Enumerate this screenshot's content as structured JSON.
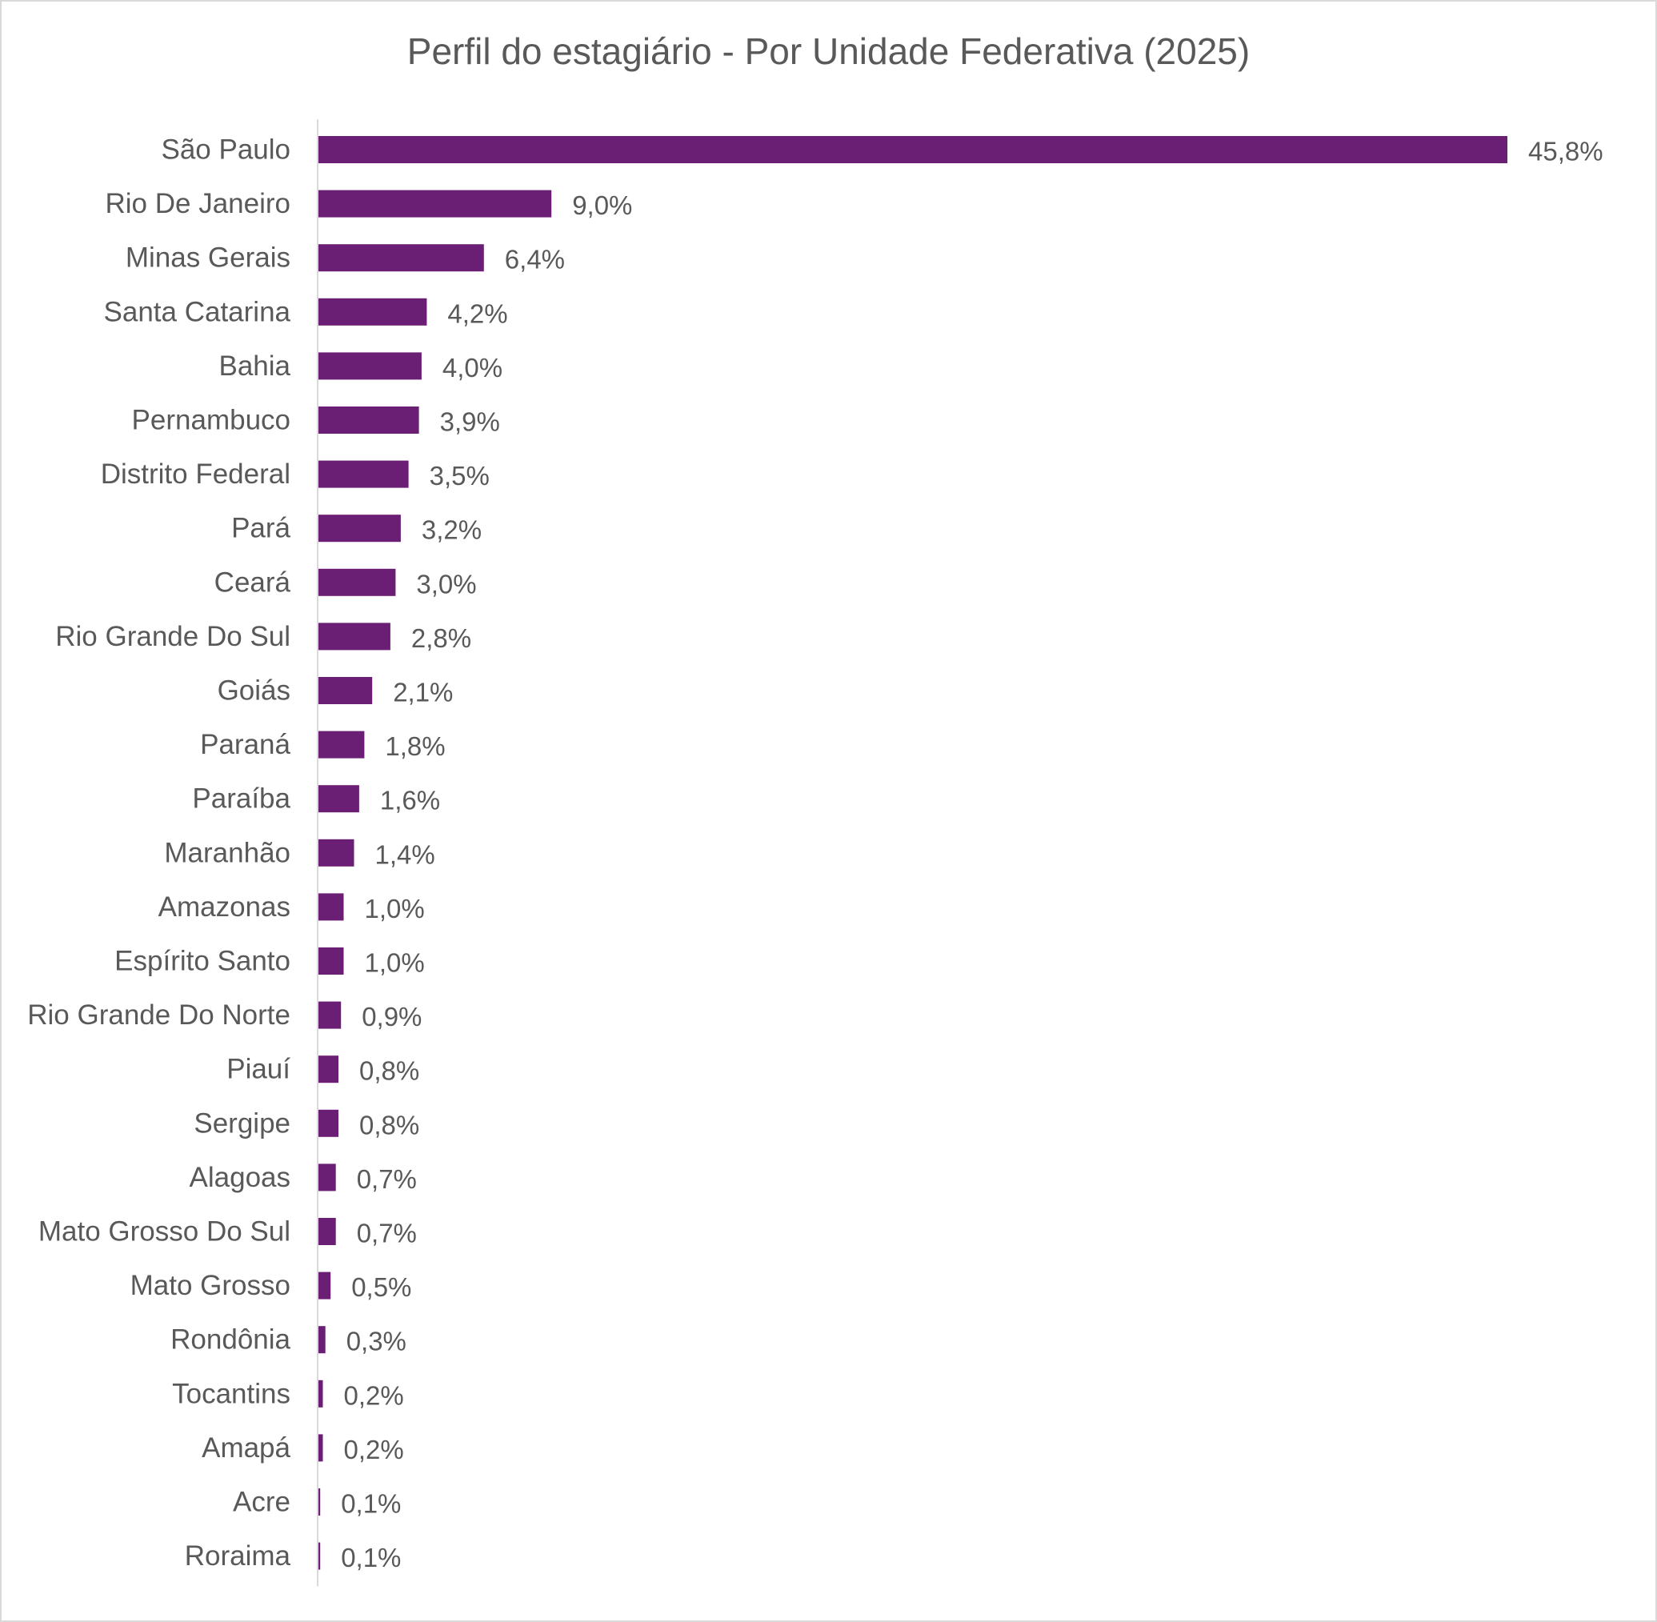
{
  "chart_data": {
    "type": "bar",
    "orientation": "horizontal",
    "title": "Perfil do estagiário - Por Unidade Federativa (2025)",
    "xlabel": "",
    "ylabel": "",
    "unit": "%",
    "grid": false,
    "legend": "none",
    "xlim": [
      0,
      45.8
    ],
    "bar_color": "#6a1f74",
    "axis_color": "#d9d9d9",
    "text_color": "#595959",
    "categories": [
      "São Paulo",
      "Rio De Janeiro",
      "Minas Gerais",
      "Santa Catarina",
      "Bahia",
      "Pernambuco",
      "Distrito Federal",
      "Pará",
      "Ceará",
      "Rio Grande Do Sul",
      "Goiás",
      "Paraná",
      "Paraíba",
      "Maranhão",
      "Amazonas",
      "Espírito Santo",
      "Rio Grande Do Norte",
      "Piauí",
      "Sergipe",
      "Alagoas",
      "Mato Grosso Do Sul",
      "Mato Grosso",
      "Rondônia",
      "Tocantins",
      "Amapá",
      "Acre",
      "Roraima"
    ],
    "values": [
      45.8,
      9.0,
      6.4,
      4.2,
      4.0,
      3.9,
      3.5,
      3.2,
      3.0,
      2.8,
      2.1,
      1.8,
      1.6,
      1.4,
      1.0,
      1.0,
      0.9,
      0.8,
      0.8,
      0.7,
      0.7,
      0.5,
      0.3,
      0.2,
      0.2,
      0.1,
      0.1
    ],
    "value_labels": [
      "45,8%",
      "9,0%",
      "6,4%",
      "4,2%",
      "4,0%",
      "3,9%",
      "3,5%",
      "3,2%",
      "3,0%",
      "2,8%",
      "2,1%",
      "1,8%",
      "1,6%",
      "1,4%",
      "1,0%",
      "1,0%",
      "0,9%",
      "0,8%",
      "0,8%",
      "0,7%",
      "0,7%",
      "0,5%",
      "0,3%",
      "0,2%",
      "0,2%",
      "0,1%",
      "0,1%"
    ]
  }
}
